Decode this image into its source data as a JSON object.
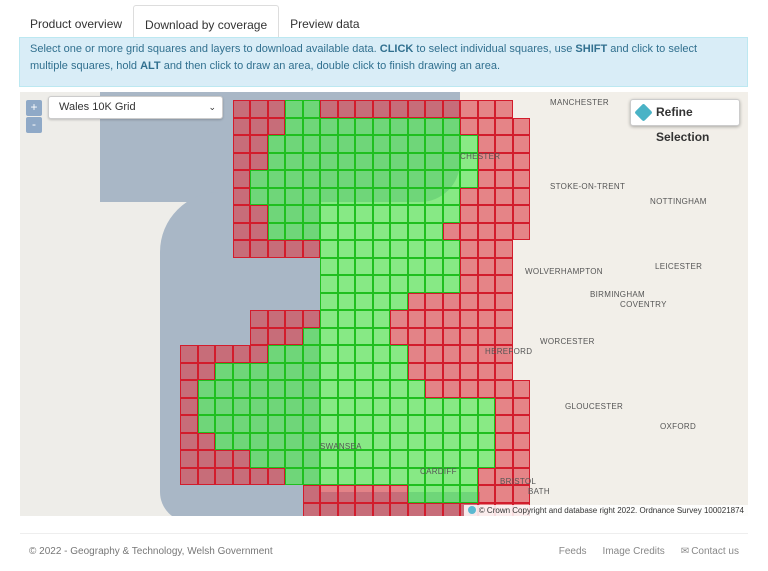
{
  "tabs": [
    {
      "label": "Product overview"
    },
    {
      "label": "Download by coverage"
    },
    {
      "label": "Preview data"
    }
  ],
  "instructions": {
    "part1": "Select one or more grid squares and layers to download available data. ",
    "click": "CLICK",
    "part2": " to select individual squares, use ",
    "shift": "SHIFT",
    "part3": " and click to select multiple squares, hold ",
    "alt": "ALT",
    "part4": " and then click to draw an area, double click to finish drawing an area."
  },
  "map": {
    "zoom_in": "+",
    "zoom_out": "-",
    "grid_select": {
      "value": "Wales 10K Grid"
    },
    "refine_label": "Refine Selection",
    "attribution": "© Crown Copyright and database right 2022. Ordnance Survey 100021874",
    "colors": {
      "selected": "#50e650",
      "unselected": "#dc3c46"
    },
    "places": [
      "MANCHESTER",
      "STOKE-ON-TRENT",
      "NOTTINGHAM",
      "LEICESTER",
      "BIRMINGHAM",
      "COVENTRY",
      "GLOUCESTER",
      "OXFORD",
      "BRISTOL",
      "BATH",
      "CARDIFF",
      "SWANSEA",
      "CHESTER",
      "WOLVERHAMPTON",
      "WORCESTER",
      "HEREFORD"
    ]
  },
  "footer": {
    "copyright": "© 2022 - Geography & Technology, Welsh Government",
    "feeds": "Feeds",
    "image_credits": "Image Credits",
    "contact": "Contact us"
  }
}
